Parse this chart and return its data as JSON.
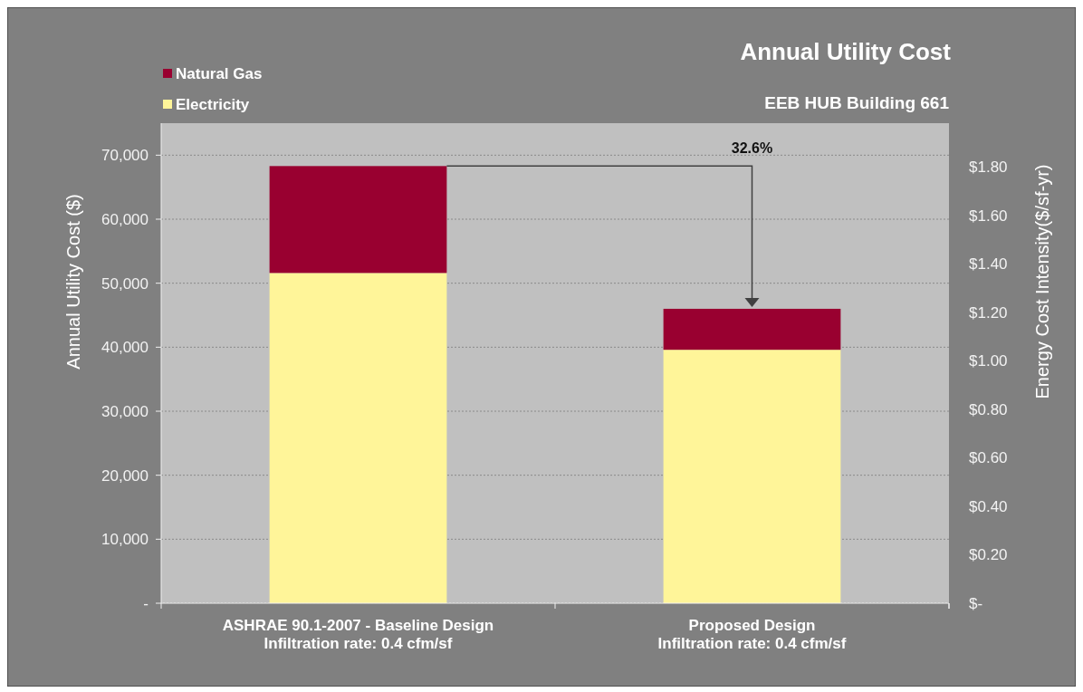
{
  "chart_data": {
    "type": "bar",
    "title": "Annual Utility Cost",
    "subtitle": "EEB HUB Building 661",
    "ylabel": "Annual Utility Cost ($)",
    "y2label": "Energy Cost Intensity($/sf-yr)",
    "categories": [
      "ASHRAE 90.1-2007 - Baseline Design\nInfiltration rate: 0.4 cfm/sf",
      "Proposed Design\nInfiltration rate: 0.4 cfm/sf"
    ],
    "stacked": true,
    "series": [
      {
        "name": "Electricity",
        "color": "#fff599",
        "values": [
          51600,
          39600
        ]
      },
      {
        "name": "Natural Gas",
        "color": "#990030",
        "values": [
          16700,
          6400
        ]
      }
    ],
    "ylim": [
      0,
      75000
    ],
    "yticks": [
      {
        "value": 0,
        "label": "-"
      },
      {
        "value": 10000,
        "label": "10,000"
      },
      {
        "value": 20000,
        "label": "20,000"
      },
      {
        "value": 30000,
        "label": "30,000"
      },
      {
        "value": 40000,
        "label": "40,000"
      },
      {
        "value": 50000,
        "label": "50,000"
      },
      {
        "value": 60000,
        "label": "60,000"
      },
      {
        "value": 70000,
        "label": "70,000"
      }
    ],
    "y2lim": [
      0,
      1.98
    ],
    "y2ticks": [
      {
        "value": 0,
        "label": "$-"
      },
      {
        "value": 0.2,
        "label": "$0.20"
      },
      {
        "value": 0.4,
        "label": "$0.40"
      },
      {
        "value": 0.6,
        "label": "$0.60"
      },
      {
        "value": 0.8,
        "label": "$0.80"
      },
      {
        "value": 1,
        "label": "$1.00"
      },
      {
        "value": 1.2,
        "label": "$1.20"
      },
      {
        "value": 1.4,
        "label": "$1.40"
      },
      {
        "value": 1.6,
        "label": "$1.60"
      },
      {
        "value": 1.8,
        "label": "$1.80"
      }
    ],
    "grid": "y",
    "legend": "top left",
    "annotations": [
      "32.6%"
    ]
  }
}
